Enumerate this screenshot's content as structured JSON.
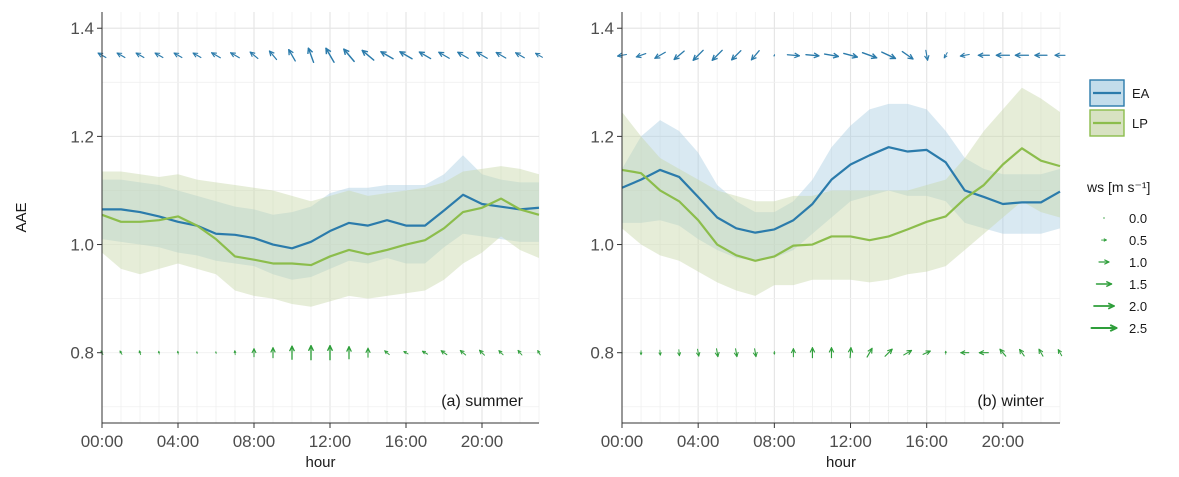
{
  "chart_data": [
    {
      "type": "line",
      "panel_label": "(a) summer",
      "xlabel": "hour",
      "ylabel": "AAE",
      "xlim": [
        0,
        23
      ],
      "ylim": [
        0.67,
        1.43
      ],
      "x_tick_labels": [
        "00:00",
        "04:00",
        "08:00",
        "12:00",
        "16:00",
        "20:00"
      ],
      "y_tick_labels": [
        "0.8",
        "1.0",
        "1.2",
        "1.4"
      ],
      "grid": true,
      "x": [
        0,
        1,
        2,
        3,
        4,
        5,
        6,
        7,
        8,
        9,
        10,
        11,
        12,
        13,
        14,
        15,
        16,
        17,
        18,
        19,
        20,
        21,
        22,
        23
      ],
      "series": [
        {
          "name": "EA",
          "color": "#2b7bab",
          "fill": "#aacfe2",
          "values": [
            1.065,
            1.065,
            1.06,
            1.052,
            1.042,
            1.035,
            1.02,
            1.018,
            1.012,
            1.0,
            0.993,
            1.005,
            1.025,
            1.04,
            1.035,
            1.045,
            1.035,
            1.035,
            1.063,
            1.092,
            1.075,
            1.07,
            1.065,
            1.068
          ],
          "upper": [
            1.12,
            1.12,
            1.115,
            1.11,
            1.1,
            1.09,
            1.08,
            1.07,
            1.065,
            1.055,
            1.06,
            1.07,
            1.095,
            1.105,
            1.105,
            1.11,
            1.11,
            1.11,
            1.13,
            1.165,
            1.13,
            1.12,
            1.115,
            1.115
          ],
          "lower": [
            1.01,
            1.005,
            1.0,
            0.995,
            0.985,
            0.98,
            0.97,
            0.965,
            0.96,
            0.945,
            0.935,
            0.94,
            0.955,
            0.97,
            0.965,
            0.975,
            0.965,
            0.965,
            0.995,
            1.02,
            1.015,
            1.01,
            1.005,
            1.005
          ]
        },
        {
          "name": "LP",
          "color": "#8cbd4c",
          "fill": "#c8d6a8",
          "values": [
            1.055,
            1.042,
            1.042,
            1.045,
            1.052,
            1.035,
            1.01,
            0.978,
            0.972,
            0.965,
            0.965,
            0.962,
            0.978,
            0.99,
            0.982,
            0.99,
            1.0,
            1.008,
            1.03,
            1.06,
            1.068,
            1.085,
            1.065,
            1.055
          ],
          "upper": [
            1.135,
            1.135,
            1.13,
            1.125,
            1.13,
            1.12,
            1.115,
            1.11,
            1.105,
            1.1,
            1.09,
            1.08,
            1.09,
            1.1,
            1.09,
            1.095,
            1.1,
            1.105,
            1.115,
            1.135,
            1.14,
            1.145,
            1.14,
            1.13
          ],
          "lower": [
            0.985,
            0.955,
            0.945,
            0.955,
            0.965,
            0.955,
            0.945,
            0.915,
            0.905,
            0.9,
            0.89,
            0.885,
            0.895,
            0.905,
            0.9,
            0.905,
            0.91,
            0.915,
            0.935,
            0.965,
            0.985,
            1.015,
            0.99,
            0.975
          ]
        }
      ],
      "wind_EA": {
        "color": "#2b7bab",
        "speed": [
          0.9,
          0.9,
          0.9,
          0.9,
          0.9,
          0.9,
          1.0,
          1.0,
          1.0,
          1.1,
          1.3,
          1.5,
          1.6,
          1.6,
          1.5,
          1.4,
          1.4,
          1.3,
          1.2,
          1.2,
          1.2,
          1.1,
          1.0,
          0.8
        ],
        "dir_deg": [
          150,
          150,
          150,
          150,
          150,
          150,
          150,
          150,
          140,
          130,
          120,
          110,
          120,
          130,
          140,
          150,
          150,
          150,
          150,
          150,
          150,
          150,
          150,
          150
        ]
      },
      "wind_LP": {
        "color": "#2e9e3a",
        "speed": [
          0.4,
          0.4,
          0.4,
          0.3,
          0.3,
          0.2,
          0.2,
          0.4,
          0.8,
          1.0,
          1.3,
          1.4,
          1.4,
          1.2,
          0.9,
          0.6,
          0.5,
          0.6,
          0.7,
          0.7,
          0.7,
          0.6,
          0.6,
          0.5
        ],
        "dir_deg": [
          120,
          120,
          110,
          100,
          100,
          100,
          100,
          95,
          90,
          90,
          90,
          90,
          90,
          90,
          90,
          140,
          150,
          150,
          145,
          140,
          135,
          135,
          130,
          120
        ]
      }
    },
    {
      "type": "line",
      "panel_label": "(b) winter",
      "xlabel": "hour",
      "ylabel": "",
      "xlim": [
        0,
        23
      ],
      "ylim": [
        0.67,
        1.43
      ],
      "x_tick_labels": [
        "00:00",
        "04:00",
        "08:00",
        "12:00",
        "16:00",
        "20:00"
      ],
      "y_tick_labels": [
        "0.8",
        "1.0",
        "1.2",
        "1.4"
      ],
      "grid": true,
      "x": [
        0,
        1,
        2,
        3,
        4,
        5,
        6,
        7,
        8,
        9,
        10,
        11,
        12,
        13,
        14,
        15,
        16,
        17,
        18,
        19,
        20,
        21,
        22,
        23
      ],
      "series": [
        {
          "name": "EA",
          "color": "#2b7bab",
          "fill": "#aacfe2",
          "values": [
            1.105,
            1.12,
            1.138,
            1.125,
            1.088,
            1.05,
            1.03,
            1.022,
            1.028,
            1.045,
            1.075,
            1.12,
            1.148,
            1.165,
            1.18,
            1.172,
            1.175,
            1.152,
            1.1,
            1.088,
            1.075,
            1.078,
            1.078,
            1.098
          ],
          "upper": [
            1.14,
            1.2,
            1.23,
            1.21,
            1.17,
            1.11,
            1.08,
            1.06,
            1.06,
            1.08,
            1.12,
            1.18,
            1.22,
            1.25,
            1.26,
            1.26,
            1.25,
            1.21,
            1.16,
            1.14,
            1.13,
            1.13,
            1.13,
            1.14
          ],
          "lower": [
            1.04,
            1.04,
            1.045,
            1.035,
            1.01,
            0.99,
            0.975,
            0.97,
            0.975,
            0.99,
            1.02,
            1.05,
            1.08,
            1.09,
            1.1,
            1.09,
            1.09,
            1.08,
            1.04,
            1.03,
            1.02,
            1.02,
            1.02,
            1.03
          ]
        },
        {
          "name": "LP",
          "color": "#8cbd4c",
          "fill": "#c8d6a8",
          "values": [
            1.138,
            1.132,
            1.1,
            1.08,
            1.045,
            1.0,
            0.98,
            0.97,
            0.978,
            0.998,
            1.0,
            1.015,
            1.015,
            1.008,
            1.015,
            1.028,
            1.042,
            1.052,
            1.085,
            1.11,
            1.148,
            1.178,
            1.155,
            1.145
          ],
          "upper": [
            1.245,
            1.2,
            1.16,
            1.14,
            1.12,
            1.1,
            1.09,
            1.08,
            1.08,
            1.09,
            1.09,
            1.1,
            1.1,
            1.1,
            1.1,
            1.1,
            1.11,
            1.12,
            1.16,
            1.21,
            1.25,
            1.29,
            1.27,
            1.245
          ],
          "lower": [
            1.03,
            1.0,
            0.98,
            0.97,
            0.95,
            0.93,
            0.915,
            0.905,
            0.925,
            0.925,
            0.935,
            0.935,
            0.935,
            0.93,
            0.935,
            0.945,
            0.95,
            0.96,
            0.99,
            1.02,
            1.05,
            1.08,
            1.06,
            1.05
          ]
        }
      ],
      "wind_EA": {
        "color": "#2b7bab",
        "speed": [
          0.9,
          1.0,
          1.2,
          1.3,
          1.4,
          1.4,
          1.3,
          1.2,
          0.2,
          1.2,
          1.3,
          1.4,
          1.4,
          1.5,
          1.5,
          1.3,
          1.0,
          0.6,
          0.9,
          1.1,
          1.3,
          1.3,
          1.2,
          1.0
        ],
        "dir_deg": [
          190,
          200,
          210,
          220,
          225,
          225,
          225,
          230,
          250,
          355,
          355,
          350,
          345,
          340,
          335,
          325,
          280,
          240,
          190,
          180,
          180,
          180,
          180,
          180
        ]
      },
      "wind_LP": {
        "color": "#2e9e3a",
        "speed": [
          0.2,
          0.4,
          0.5,
          0.6,
          0.7,
          0.8,
          0.8,
          0.8,
          0.3,
          0.8,
          1.0,
          1.0,
          1.0,
          1.0,
          1.0,
          0.9,
          0.8,
          0.3,
          0.8,
          0.9,
          0.9,
          0.8,
          0.8,
          0.7
        ],
        "dir_deg": [
          270,
          270,
          275,
          275,
          280,
          280,
          280,
          280,
          270,
          90,
          90,
          90,
          85,
          60,
          45,
          30,
          25,
          90,
          180,
          180,
          130,
          125,
          120,
          120
        ]
      }
    }
  ],
  "legend": {
    "items": [
      {
        "name": "EA",
        "line": "#2b7bab",
        "fill": "#aacfe2"
      },
      {
        "name": "LP",
        "line": "#8cbd4c",
        "fill": "#c8d6a8"
      }
    ],
    "ws_title": "ws [m s⁻¹]",
    "ws_color": "#2e9e3a",
    "ws_entries": [
      "0.0",
      "0.5",
      "1.0",
      "1.5",
      "2.0",
      "2.5"
    ],
    "ws_values": [
      0.0,
      0.5,
      1.0,
      1.5,
      2.0,
      2.5
    ]
  }
}
